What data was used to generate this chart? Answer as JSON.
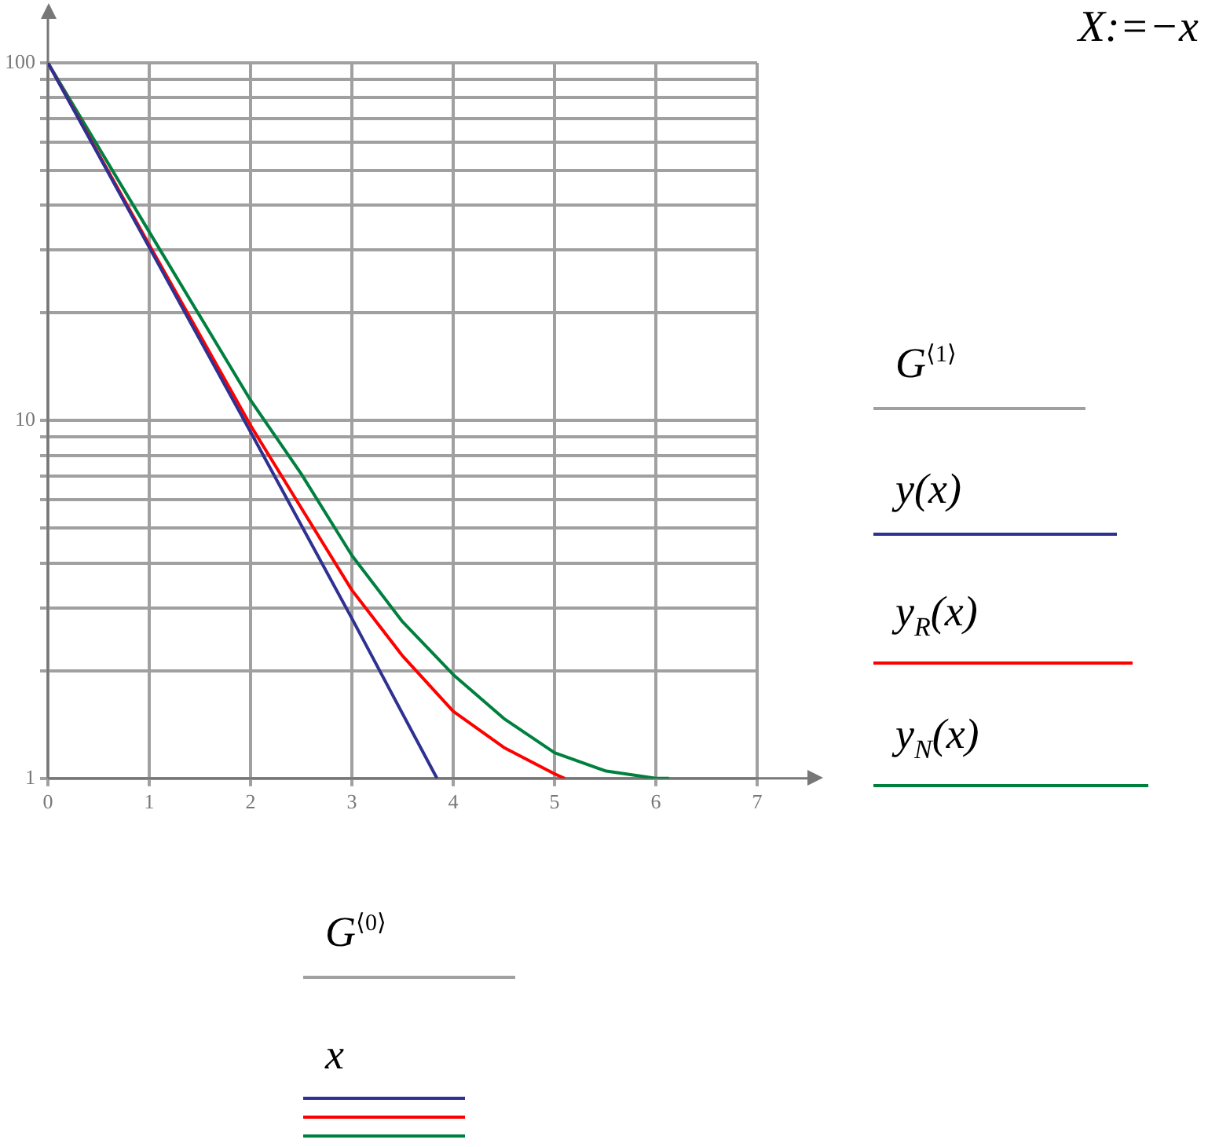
{
  "chart_data": {
    "type": "line",
    "ylabel": "G$^{⟨1⟩}$",
    "xlabel": "G$^{⟨0⟩}$",
    "annotations": [
      "x",
      "X:=−x"
    ],
    "xlim": [
      0,
      7
    ],
    "xticks": [
      0,
      1,
      2,
      3,
      4,
      5,
      6,
      7
    ],
    "ylim": [
      1,
      100
    ],
    "log": "y",
    "grid": true,
    "legend": "right",
    "yticks": [
      1,
      {
        "value": 2,
        "label": null
      },
      {
        "value": 3,
        "label": null
      },
      {
        "value": 4,
        "label": null
      },
      {
        "value": 5,
        "label": null
      },
      {
        "value": 6,
        "label": null
      },
      {
        "value": 7,
        "label": null
      },
      {
        "value": 8,
        "label": null
      },
      {
        "value": 9,
        "label": null
      },
      10,
      {
        "value": 20,
        "label": null
      },
      {
        "value": 30,
        "label": null
      },
      {
        "value": 40,
        "label": null
      },
      {
        "value": 50,
        "label": null
      },
      {
        "value": 60,
        "label": null
      },
      {
        "value": 70,
        "label": null
      },
      {
        "value": 80,
        "label": null
      },
      {
        "value": 90,
        "label": null
      },
      100
    ],
    "series": [
      {
        "name": "y(x)",
        "color": "#2e3192",
        "x": [
          0,
          1,
          2,
          3,
          3.84
        ],
        "values": [
          100,
          30.5,
          9.3,
          2.8,
          1
        ]
      },
      {
        "name": "y$_{R}$(x)",
        "color": "#ff0000",
        "x": [
          0,
          1,
          2,
          2.5,
          3,
          3.5,
          4,
          4.5,
          5,
          5.1
        ],
        "values": [
          100,
          31,
          9.7,
          5.7,
          3.36,
          2.2,
          1.54,
          1.22,
          1.03,
          1
        ]
      },
      {
        "name": "y$_{N}$(x)",
        "color": "#00803f",
        "x": [
          0,
          1,
          2,
          2.5,
          3,
          3.5,
          4,
          4.5,
          5,
          5.5,
          6,
          6.13
        ],
        "values": [
          100,
          33.7,
          11.4,
          7.1,
          4.2,
          2.74,
          1.95,
          1.47,
          1.18,
          1.05,
          1.0,
          1
        ]
      }
    ]
  }
}
